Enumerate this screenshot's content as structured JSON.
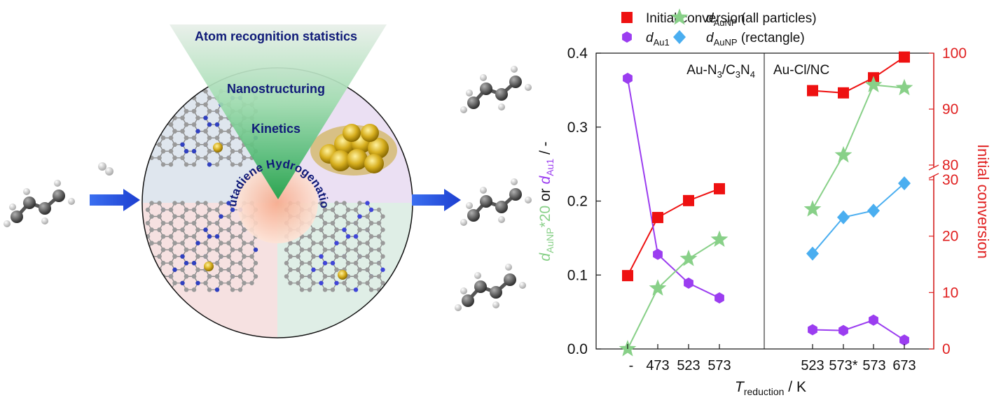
{
  "illustration": {
    "cone_labels": [
      "Atom recognition statistics",
      "Nanostructuring",
      "Kinetics"
    ],
    "arc_label": "Butadiene Hydrogenation"
  },
  "chart_data": {
    "type": "scatter",
    "panel_labels": {
      "left_prefix": "Au-N",
      "left_sub1": "3",
      "left_mid": "/C",
      "left_sub2": "3",
      "left_mid2": "N",
      "left_sub3": "4",
      "right": "Au-Cl/NC"
    },
    "x_tick_labels": [
      "-",
      "473",
      "523",
      "573",
      "523",
      "573*",
      "573",
      "673"
    ],
    "xlabel": {
      "main": "T",
      "sub": "reduction",
      "unit": " / K"
    },
    "y_left": {
      "ylim": [
        0,
        0.4
      ],
      "ticks": [
        "0.0",
        "0.1",
        "0.2",
        "0.3",
        "0.4"
      ],
      "label": {
        "p1": "d",
        "p1sub": "AuNP",
        "p2": "*20",
        "p3": " or ",
        "p4": "d",
        "p4sub": "Au1",
        "p5": " / -"
      }
    },
    "y_right": {
      "segments": [
        {
          "range": [
            0,
            30
          ]
        },
        {
          "range": [
            80,
            100
          ]
        }
      ],
      "ticks": [
        "0",
        "10",
        "20",
        "30",
        "80",
        "90",
        "100"
      ],
      "label": "Initial conversion"
    },
    "legend": [
      {
        "text": "Initial conversion",
        "italic_part": "",
        "sub": "",
        "tail": ""
      },
      {
        "text": "",
        "italic_part": "d",
        "sub": "AuNP",
        "tail": " (all particles)"
      },
      {
        "text": "",
        "italic_part": "d",
        "sub": "Au1",
        "tail": ""
      },
      {
        "text": "",
        "italic_part": "d",
        "sub": "AuNP",
        "tail": " (rectangle)"
      }
    ],
    "series": [
      {
        "key": "conv",
        "axis": "right",
        "color": "#ee1111",
        "groups": [
          [
            [
              1,
              13
            ],
            [
              2,
              23.3
            ],
            [
              3,
              26.3
            ],
            [
              4,
              28.4
            ]
          ],
          [
            [
              6,
              93.3
            ],
            [
              7,
              92.9
            ],
            [
              8,
              95.6
            ],
            [
              9,
              99.3
            ]
          ]
        ]
      },
      {
        "key": "dAu1",
        "axis": "left",
        "color": "#9b3df0",
        "groups": [
          [
            [
              1,
              0.366
            ],
            [
              2,
              0.128
            ],
            [
              3,
              0.089
            ],
            [
              4,
              0.069
            ]
          ],
          [
            [
              6,
              0.026
            ],
            [
              7,
              0.025
            ],
            [
              8,
              0.039
            ],
            [
              9,
              0.012
            ]
          ]
        ]
      },
      {
        "key": "dAuNP_all",
        "axis": "left",
        "color": "#88d088",
        "groups": [
          [
            [
              1,
              0.0
            ],
            [
              2,
              0.082
            ],
            [
              3,
              0.122
            ],
            [
              4,
              0.148
            ]
          ],
          [
            [
              6,
              0.189
            ],
            [
              7,
              0.262
            ],
            [
              8,
              0.357
            ],
            [
              9,
              0.353
            ]
          ]
        ]
      },
      {
        "key": "dAuNP_rect",
        "axis": "left",
        "color": "#4aaef0",
        "groups": [
          [
            [
              6,
              0.129
            ],
            [
              7,
              0.178
            ],
            [
              8,
              0.187
            ],
            [
              9,
              0.224
            ]
          ]
        ]
      }
    ]
  }
}
